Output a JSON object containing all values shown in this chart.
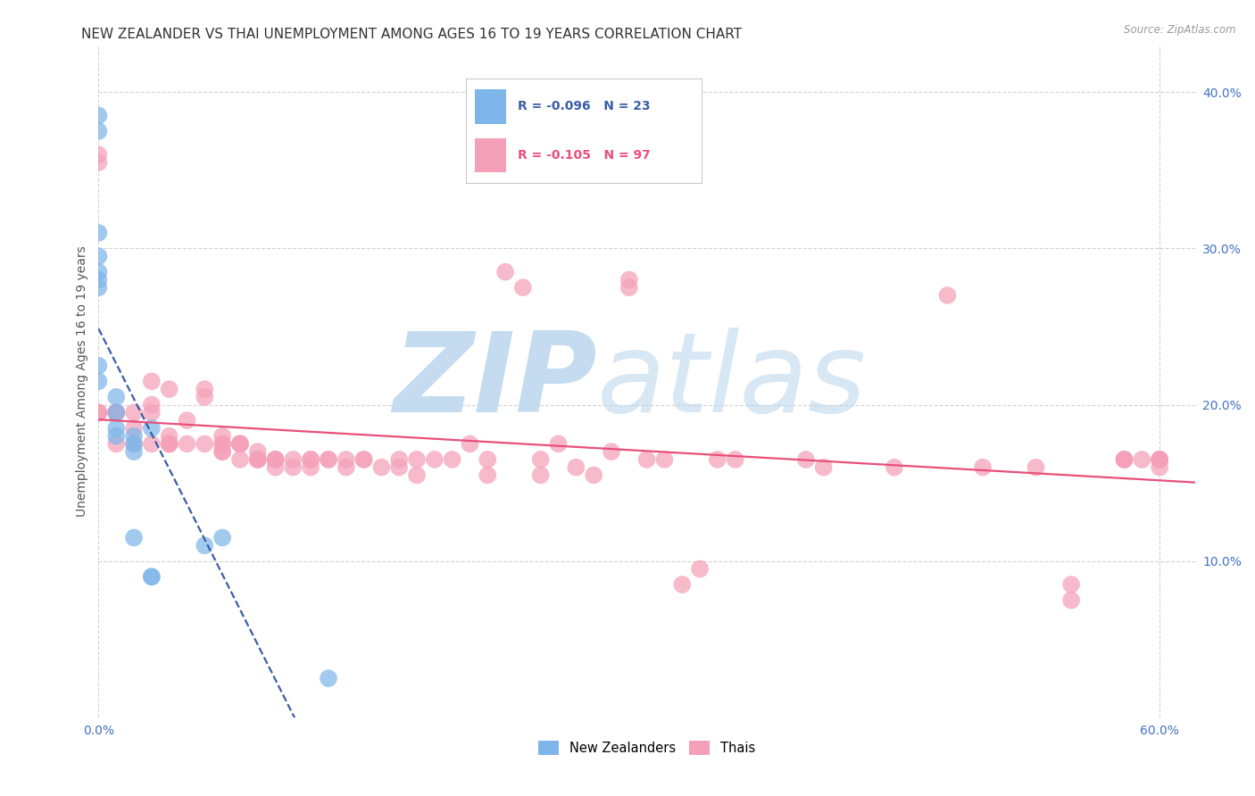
{
  "title": "NEW ZEALANDER VS THAI UNEMPLOYMENT AMONG AGES 16 TO 19 YEARS CORRELATION CHART",
  "source": "Source: ZipAtlas.com",
  "ylabel": "Unemployment Among Ages 16 to 19 years",
  "xlim": [
    0.0,
    0.62
  ],
  "ylim": [
    0.0,
    0.43
  ],
  "xtick_left": 0.0,
  "xtick_right": 0.6,
  "yticks": [
    0.1,
    0.2,
    0.3,
    0.4
  ],
  "ytick_labels": [
    "10.0%",
    "20.0%",
    "30.0%",
    "40.0%"
  ],
  "nz_R": -0.096,
  "nz_N": 23,
  "thai_R": -0.105,
  "thai_N": 97,
  "nz_color": "#7EB6EA",
  "thai_color": "#F4A0B8",
  "nz_line_color": "#3B5EA6",
  "thai_line_color": "#E8507A",
  "background_color": "#FFFFFF",
  "grid_color": "#CCCCCC",
  "title_fontsize": 11,
  "axis_label_fontsize": 10,
  "tick_fontsize": 10,
  "nz_x": [
    0.0,
    0.0,
    0.0,
    0.0,
    0.0,
    0.0,
    0.0,
    0.0,
    0.0,
    0.01,
    0.01,
    0.01,
    0.01,
    0.02,
    0.02,
    0.02,
    0.02,
    0.03,
    0.03,
    0.03,
    0.06,
    0.07,
    0.13
  ],
  "nz_y": [
    0.385,
    0.375,
    0.31,
    0.295,
    0.285,
    0.28,
    0.275,
    0.225,
    0.215,
    0.205,
    0.195,
    0.185,
    0.18,
    0.18,
    0.175,
    0.17,
    0.115,
    0.09,
    0.09,
    0.185,
    0.11,
    0.115,
    0.025
  ],
  "thai_x": [
    0.0,
    0.0,
    0.0,
    0.0,
    0.0,
    0.01,
    0.01,
    0.01,
    0.01,
    0.02,
    0.02,
    0.02,
    0.03,
    0.03,
    0.03,
    0.03,
    0.04,
    0.04,
    0.04,
    0.04,
    0.04,
    0.05,
    0.05,
    0.06,
    0.06,
    0.06,
    0.07,
    0.07,
    0.07,
    0.07,
    0.07,
    0.08,
    0.08,
    0.08,
    0.08,
    0.09,
    0.09,
    0.09,
    0.09,
    0.1,
    0.1,
    0.1,
    0.1,
    0.11,
    0.11,
    0.12,
    0.12,
    0.12,
    0.13,
    0.13,
    0.14,
    0.14,
    0.15,
    0.15,
    0.16,
    0.17,
    0.17,
    0.18,
    0.18,
    0.19,
    0.2,
    0.21,
    0.22,
    0.22,
    0.23,
    0.24,
    0.25,
    0.25,
    0.26,
    0.27,
    0.28,
    0.29,
    0.3,
    0.3,
    0.31,
    0.32,
    0.33,
    0.34,
    0.35,
    0.36,
    0.4,
    0.41,
    0.45,
    0.48,
    0.5,
    0.53,
    0.55,
    0.55,
    0.58,
    0.58,
    0.58,
    0.59,
    0.6,
    0.6,
    0.6,
    0.6,
    0.6
  ],
  "thai_y": [
    0.36,
    0.355,
    0.195,
    0.195,
    0.195,
    0.195,
    0.195,
    0.175,
    0.195,
    0.195,
    0.185,
    0.175,
    0.215,
    0.2,
    0.195,
    0.175,
    0.175,
    0.18,
    0.175,
    0.21,
    0.175,
    0.19,
    0.175,
    0.21,
    0.205,
    0.175,
    0.17,
    0.17,
    0.175,
    0.18,
    0.175,
    0.175,
    0.175,
    0.165,
    0.175,
    0.17,
    0.165,
    0.165,
    0.165,
    0.165,
    0.16,
    0.165,
    0.165,
    0.165,
    0.16,
    0.165,
    0.16,
    0.165,
    0.165,
    0.165,
    0.165,
    0.16,
    0.165,
    0.165,
    0.16,
    0.165,
    0.16,
    0.155,
    0.165,
    0.165,
    0.165,
    0.175,
    0.165,
    0.155,
    0.285,
    0.275,
    0.165,
    0.155,
    0.175,
    0.16,
    0.155,
    0.17,
    0.275,
    0.28,
    0.165,
    0.165,
    0.085,
    0.095,
    0.165,
    0.165,
    0.165,
    0.16,
    0.16,
    0.27,
    0.16,
    0.16,
    0.085,
    0.075,
    0.165,
    0.165,
    0.165,
    0.165,
    0.165,
    0.16,
    0.165,
    0.165,
    0.165
  ]
}
